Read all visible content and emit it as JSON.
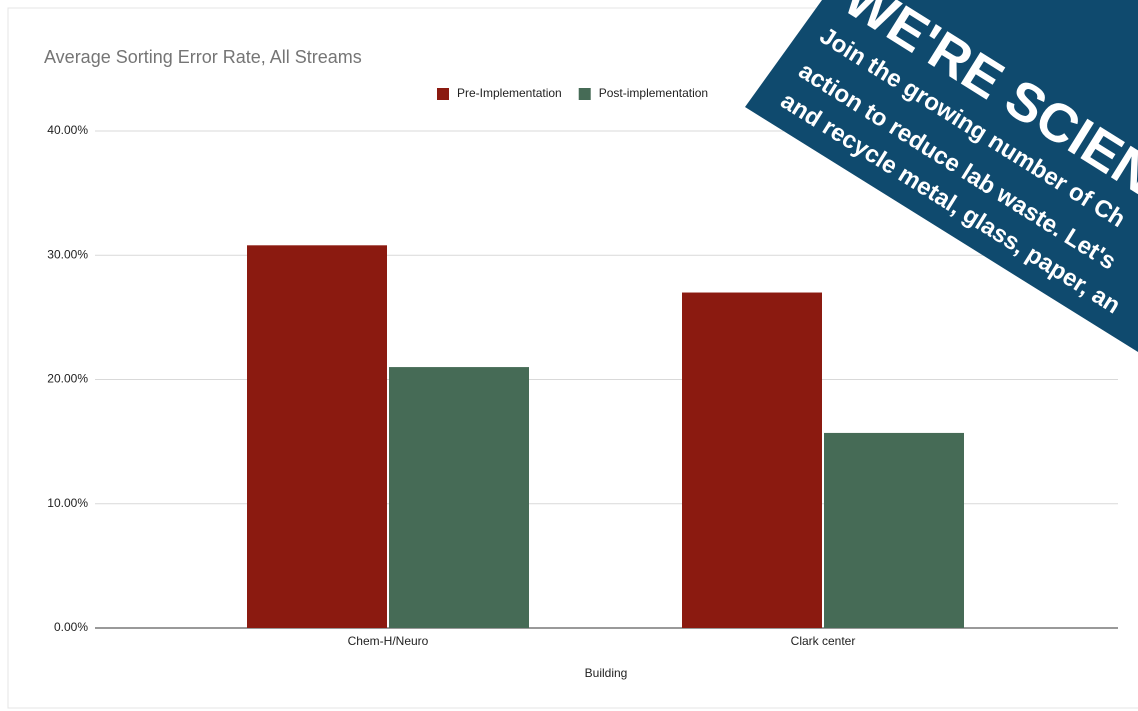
{
  "chart_data": {
    "type": "bar",
    "title": "Average Sorting Error Rate, All Streams",
    "x_label": "Building",
    "categories": [
      "Chem-H/Neuro",
      "Clark center"
    ],
    "series": [
      {
        "name": "Pre-Implementation",
        "color": "#8b1a10",
        "values": [
          30.8,
          27.0
        ]
      },
      {
        "name": "Post-implementation",
        "color": "#466b56",
        "values": [
          21.0,
          15.7
        ]
      }
    ],
    "ylim": [
      0,
      40
    ],
    "yticks": [
      {
        "value": 0,
        "label": "0.00%"
      },
      {
        "value": 10,
        "label": "10.00%"
      },
      {
        "value": 20,
        "label": "20.00%"
      },
      {
        "value": 30,
        "label": "30.00%"
      },
      {
        "value": 40,
        "label": "40.00%"
      }
    ],
    "grid": true,
    "legend": "top",
    "annotations": [
      "WE'RE SCIENT",
      "Join the growing number of Ch",
      "action to reduce lab waste. Let's",
      "and recycle metal, glass, paper, an"
    ]
  }
}
